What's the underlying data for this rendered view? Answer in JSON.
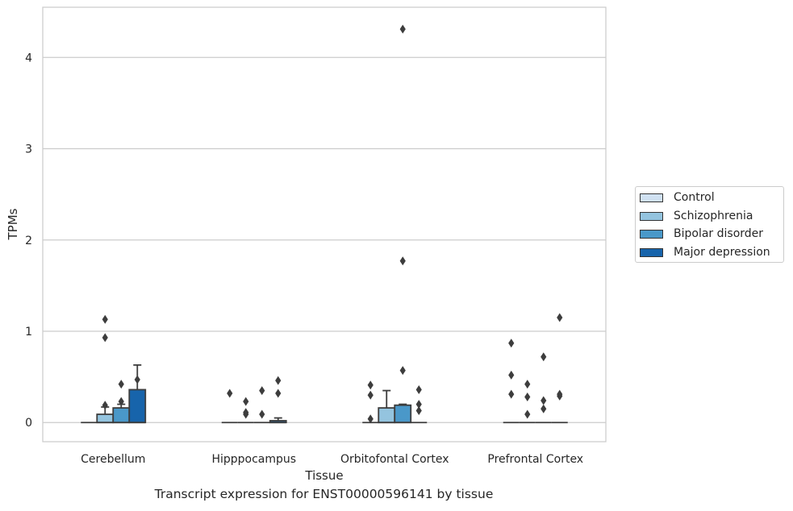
{
  "chart_data": {
    "type": "box",
    "title": "",
    "caption": "Transcript expression for ENST00000596141 by tissue",
    "xlabel": "Tissue",
    "ylabel": "TPMs",
    "ylim": [
      -0.21,
      4.55
    ],
    "yticks": [
      "0",
      "1",
      "2",
      "3",
      "4"
    ],
    "grid": "horizontal",
    "legend_position": "right",
    "categories": [
      "Cerebellum",
      "Hipppocampus",
      "Orbitofontal Cortex",
      "Prefrontal Cortex"
    ],
    "series": [
      {
        "name": "Control",
        "color": "#d0e1f2",
        "boxes": [
          {
            "q1": 0,
            "median": 0,
            "q3": 0,
            "whisker_low": 0,
            "whisker_high": 0,
            "outliers": []
          },
          {
            "q1": 0,
            "median": 0,
            "q3": 0,
            "whisker_low": 0,
            "whisker_high": 0,
            "outliers": [
              0.32
            ]
          },
          {
            "q1": 0,
            "median": 0,
            "q3": 0,
            "whisker_low": 0,
            "whisker_high": 0,
            "outliers": [
              0.04,
              0.3,
              0.41
            ]
          },
          {
            "q1": 0,
            "median": 0,
            "q3": 0,
            "whisker_low": 0,
            "whisker_high": 0,
            "outliers": [
              0.31,
              0.52,
              0.87
            ]
          }
        ]
      },
      {
        "name": "Schizophrenia",
        "color": "#94c4df",
        "boxes": [
          {
            "q1": 0,
            "median": 0,
            "q3": 0.09,
            "whisker_low": 0,
            "whisker_high": 0.17,
            "outliers": [
              0.19,
              0.93,
              1.13
            ]
          },
          {
            "q1": 0,
            "median": 0,
            "q3": 0,
            "whisker_low": 0,
            "whisker_high": 0,
            "outliers": [
              0.09,
              0.11,
              0.23
            ]
          },
          {
            "q1": 0,
            "median": 0,
            "q3": 0.16,
            "whisker_low": 0,
            "whisker_high": 0.35,
            "outliers": []
          },
          {
            "q1": 0,
            "median": 0,
            "q3": 0,
            "whisker_low": 0,
            "whisker_high": 0,
            "outliers": [
              0.09,
              0.28,
              0.42
            ]
          }
        ]
      },
      {
        "name": "Bipolar disorder",
        "color": "#4a98c9",
        "boxes": [
          {
            "q1": 0,
            "median": 0,
            "q3": 0.16,
            "whisker_low": 0,
            "whisker_high": 0.2,
            "outliers": [
              0.23,
              0.42
            ]
          },
          {
            "q1": 0,
            "median": 0,
            "q3": 0,
            "whisker_low": 0,
            "whisker_high": 0,
            "outliers": [
              0.09,
              0.35
            ]
          },
          {
            "q1": 0,
            "median": 0,
            "q3": 0.19,
            "whisker_low": 0,
            "whisker_high": 0.2,
            "outliers": [
              0.57,
              1.77,
              4.31
            ]
          },
          {
            "q1": 0,
            "median": 0,
            "q3": 0,
            "whisker_low": 0,
            "whisker_high": 0,
            "outliers": [
              0.15,
              0.24,
              0.72
            ]
          }
        ]
      },
      {
        "name": "Major depression",
        "color": "#1764ab",
        "boxes": [
          {
            "q1": 0,
            "median": 0,
            "q3": 0.36,
            "whisker_low": 0,
            "whisker_high": 0.63,
            "outliers": [
              0.47
            ]
          },
          {
            "q1": 0,
            "median": 0,
            "q3": 0.02,
            "whisker_low": 0,
            "whisker_high": 0.05,
            "outliers": [
              0.32,
              0.46
            ]
          },
          {
            "q1": 0,
            "median": 0,
            "q3": 0,
            "whisker_low": 0,
            "whisker_high": 0,
            "outliers": [
              0.13,
              0.2,
              0.36
            ]
          },
          {
            "q1": 0,
            "median": 0,
            "q3": 0,
            "whisker_low": 0,
            "whisker_high": 0,
            "outliers": [
              0.29,
              0.31,
              1.15
            ]
          }
        ]
      }
    ]
  }
}
